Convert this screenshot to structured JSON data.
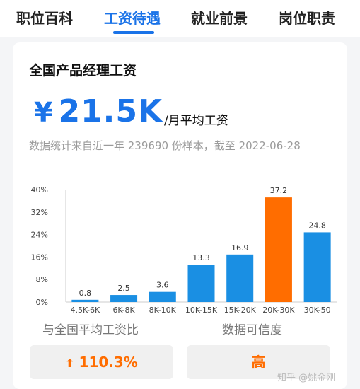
{
  "tabs": [
    {
      "label": "职位百科"
    },
    {
      "label": "工资待遇"
    },
    {
      "label": "就业前景"
    },
    {
      "label": "岗位职责"
    }
  ],
  "card": {
    "title": "全国产品经理工资",
    "salary_symbol": "¥",
    "salary_value": "21.5K",
    "salary_unit": "/月平均工资",
    "stat_note": "数据统计来自近一年 239690 份样本，截至 2022-06-28"
  },
  "chart_data": {
    "type": "bar",
    "categories": [
      "4.5K-6K",
      "6K-8K",
      "8K-10K",
      "10K-15K",
      "15K-20K",
      "20K-30K",
      "30K-50"
    ],
    "values": [
      0.8,
      2.5,
      3.6,
      13.3,
      16.9,
      37.2,
      24.8
    ],
    "value_labels": [
      "0.8",
      "2.5",
      "3.6",
      "13.3",
      "16.9",
      "37.2",
      "24.8"
    ],
    "yticks": [
      "0%",
      "8%",
      "16%",
      "24%",
      "32%",
      "40%"
    ],
    "ylim": [
      0,
      40
    ],
    "grid": false,
    "colors": {
      "default": "#1a8fe3",
      "highlight": "#ff6d00"
    },
    "highlight_index": 5
  },
  "comparison": {
    "label": "与全国平均工资比",
    "arrow_icon": "arrow-up-icon",
    "value": "110.3%"
  },
  "credibility": {
    "label": "数据可信度",
    "value": "高"
  },
  "watermark": "知乎 @姚金刚"
}
